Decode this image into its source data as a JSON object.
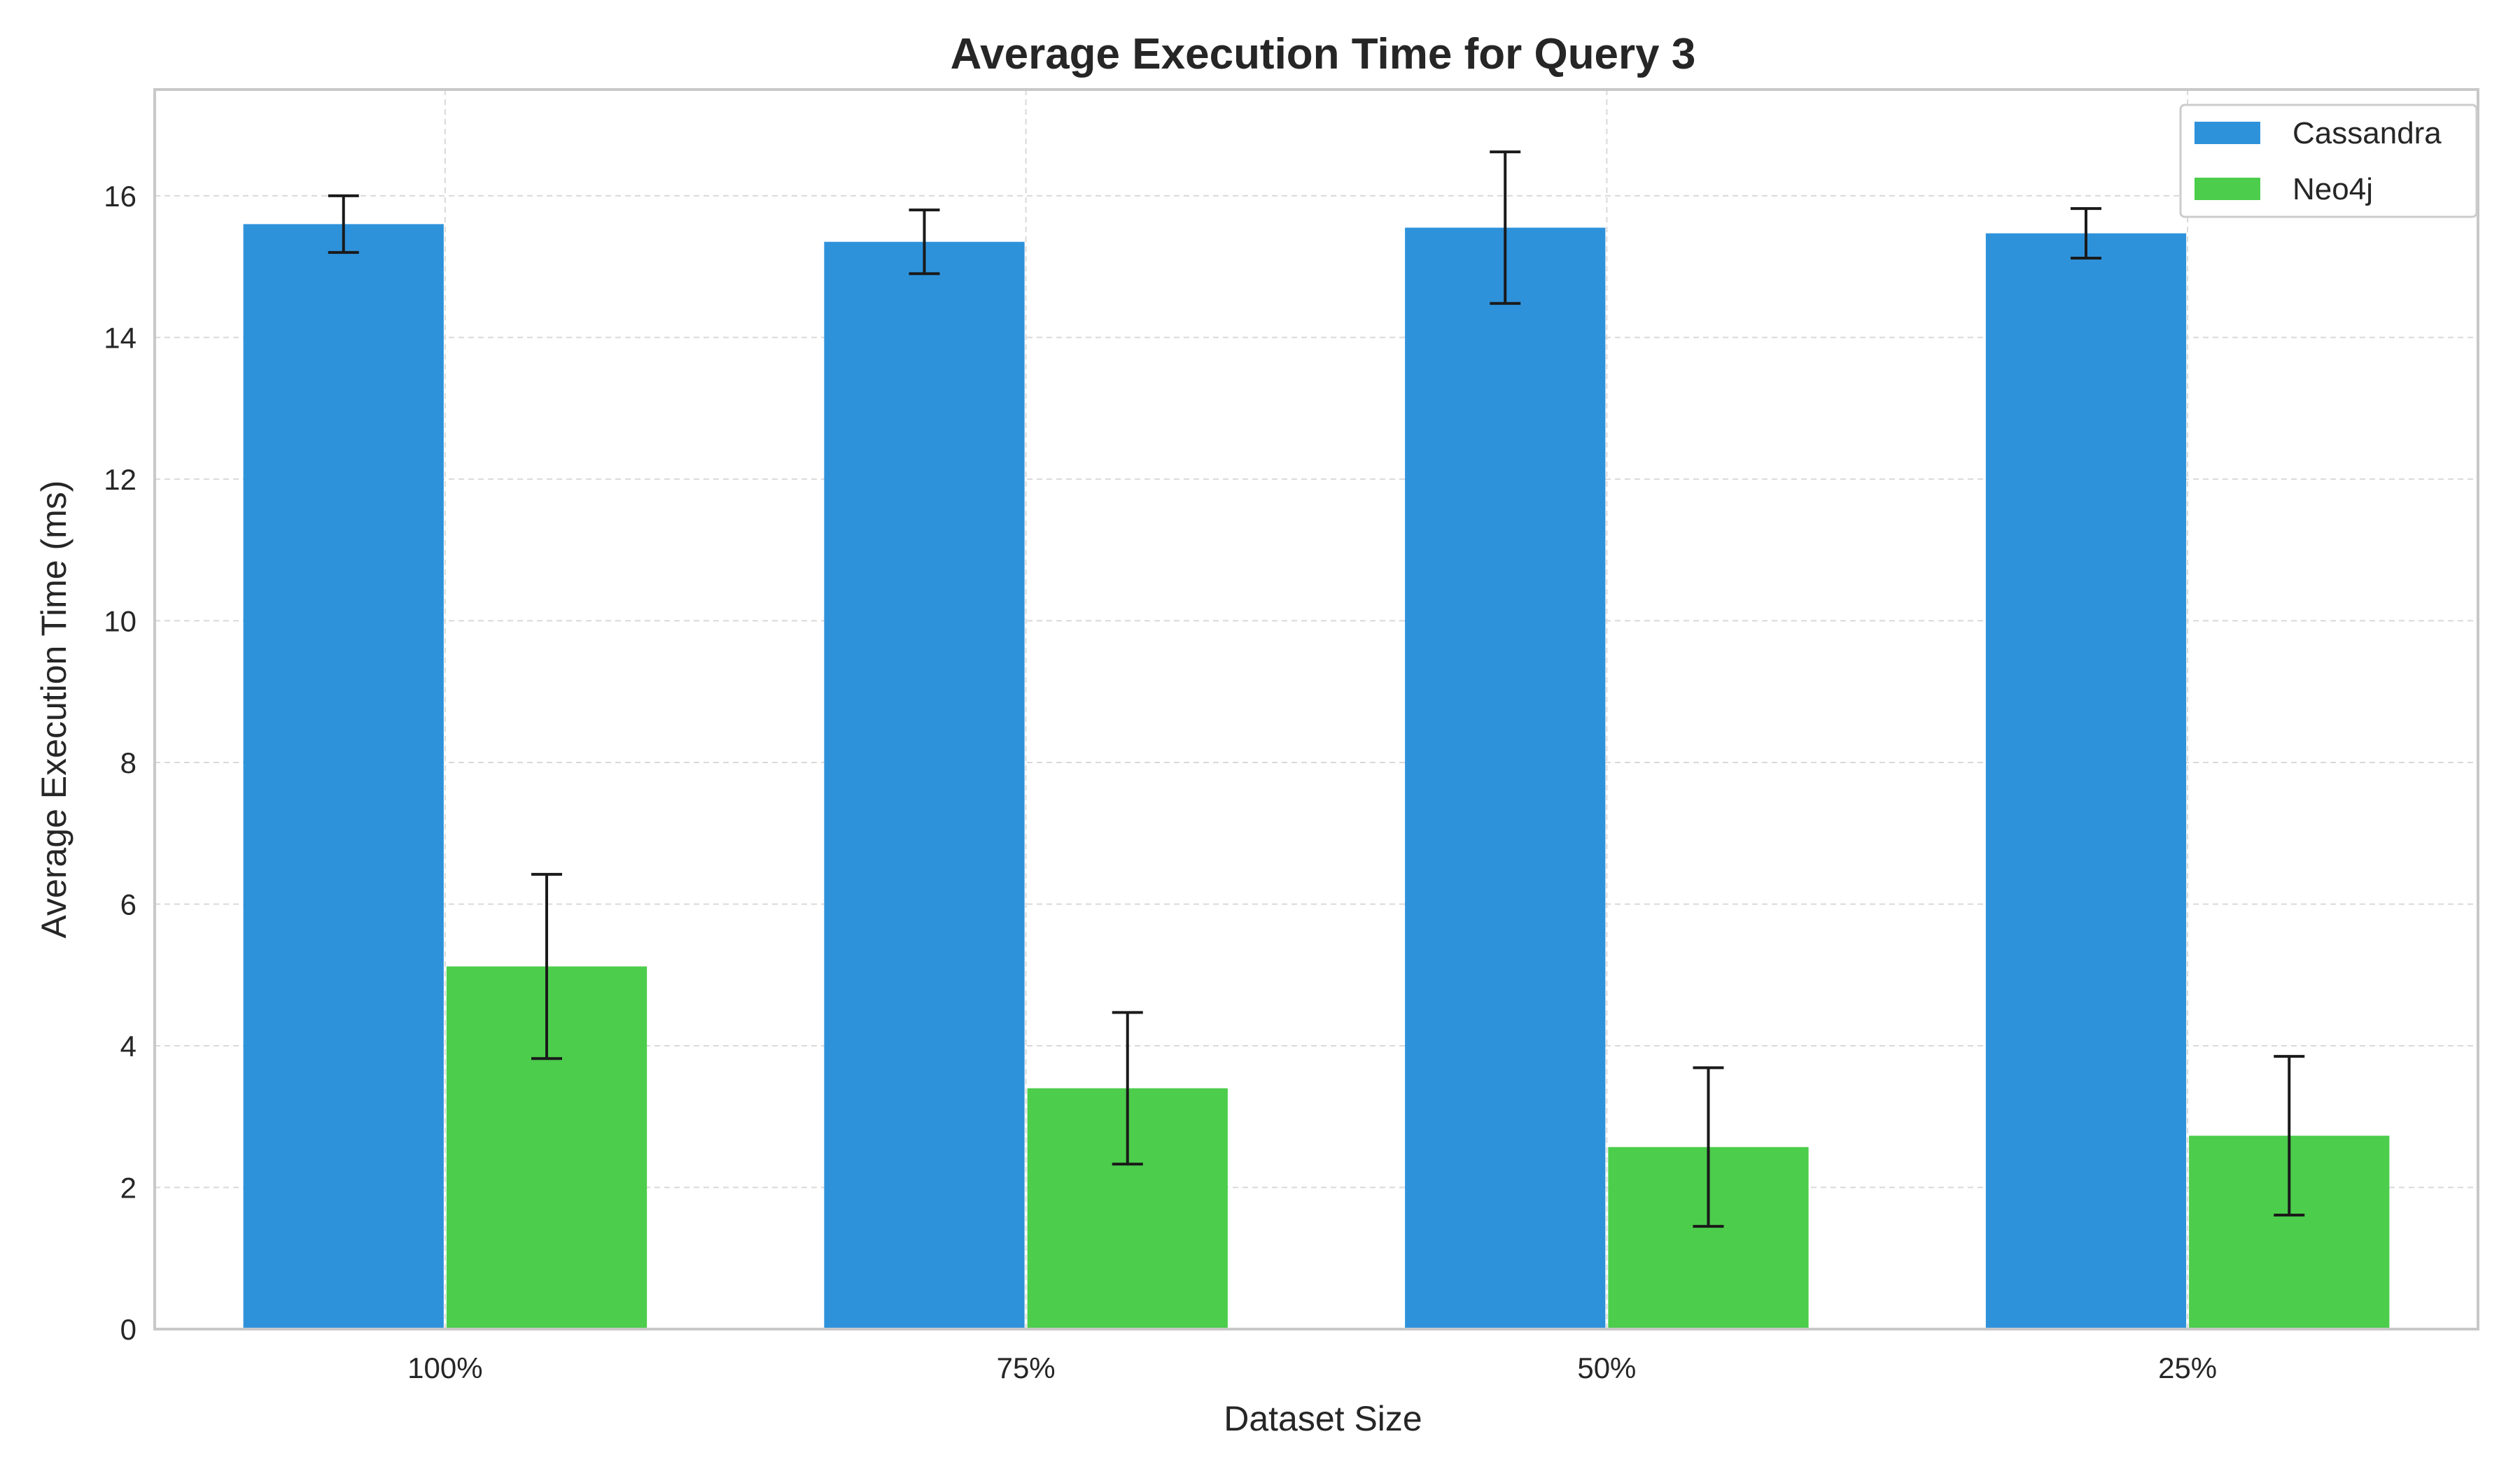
{
  "chart_data": {
    "type": "bar",
    "title": "Average Execution Time for Query 3",
    "xlabel": "Dataset Size",
    "ylabel": "Average Execution Time (ms)",
    "categories": [
      "100%",
      "75%",
      "50%",
      "25%"
    ],
    "ylim": [
      0,
      17.5
    ],
    "yticks": [
      0,
      2,
      4,
      6,
      8,
      10,
      12,
      14,
      16
    ],
    "grid": true,
    "legend_position": "top-right",
    "series": [
      {
        "name": "Cassandra",
        "color": "#2e92db",
        "values": [
          15.6,
          15.35,
          15.55,
          15.47
        ],
        "errors": [
          0.4,
          0.45,
          1.07,
          0.35
        ]
      },
      {
        "name": "Neo4j",
        "color": "#4ccd4c",
        "values": [
          5.12,
          3.4,
          2.57,
          2.73
        ],
        "errors": [
          1.3,
          1.07,
          1.12,
          1.12
        ]
      }
    ]
  }
}
